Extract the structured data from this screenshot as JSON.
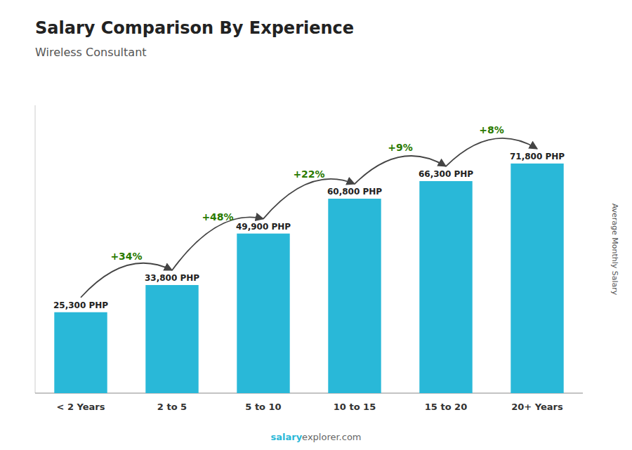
{
  "chart_data": {
    "type": "bar",
    "title": "Salary Comparison By Experience",
    "subtitle": "Wireless Consultant",
    "y_label": "Average Monthly Salary",
    "categories": [
      "< 2 Years",
      "2 to 5",
      "5 to 10",
      "10 to 15",
      "15 to 20",
      "20+ Years"
    ],
    "values": [
      25300,
      33800,
      49900,
      60800,
      66300,
      71800
    ],
    "value_labels": [
      "25,300 PHP",
      "33,800 PHP",
      "49,900 PHP",
      "60,800 PHP",
      "66,300 PHP",
      "71,800 PHP"
    ],
    "data_labels": true,
    "annotations": [
      "+34%",
      "+48%",
      "+22%",
      "+9%",
      "+8%"
    ],
    "watermark": [
      "salary",
      "explorer.com"
    ],
    "color": "#29b8d8",
    "ylim": [
      0,
      90000
    ],
    "tick_labels": "x",
    "grid": false
  }
}
